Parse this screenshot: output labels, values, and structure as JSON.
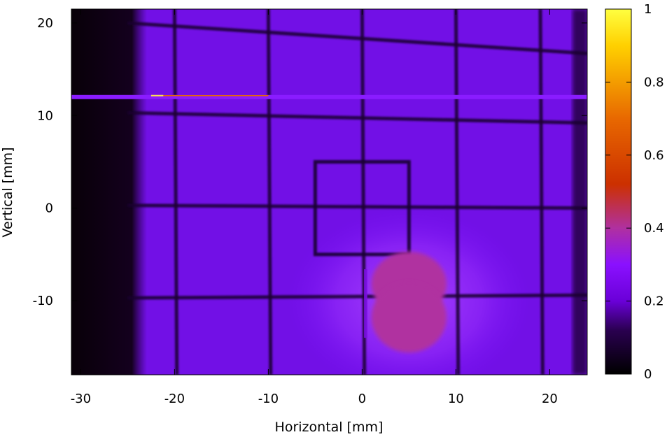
{
  "chart_data": {
    "type": "heatmap",
    "xlabel": "Horizontal [mm]",
    "ylabel": "Vertical [mm]",
    "xlim": [
      -31,
      24
    ],
    "ylim": [
      -18,
      21.5
    ],
    "xticks": [
      -30,
      -20,
      -10,
      0,
      10,
      20
    ],
    "yticks": [
      -10,
      0,
      10,
      20
    ],
    "colorbar": {
      "range": [
        0,
        1
      ],
      "ticks": [
        0,
        0.2,
        0.4,
        0.6,
        0.8,
        1
      ],
      "palette": [
        "#000000",
        "#2a0050",
        "#6a00d8",
        "#8a10ff",
        "#b030a0",
        "#cc3000",
        "#e86800",
        "#ffd000",
        "#ffff40"
      ]
    },
    "grid_wires": {
      "vertical_x": [
        -20,
        -10,
        0,
        10,
        19
      ],
      "horizontal_y": [
        18.5,
        10,
        0,
        -10
      ]
    },
    "square_aperture": {
      "x": [
        -5,
        5
      ],
      "y": [
        -5,
        5
      ]
    },
    "hot_spot": {
      "center": [
        5,
        -10
      ],
      "peak_value": 0.55
    },
    "bright_stripe": {
      "y": 12,
      "from_x": -22.5,
      "value": 0.7
    },
    "background_value": 0.18
  }
}
